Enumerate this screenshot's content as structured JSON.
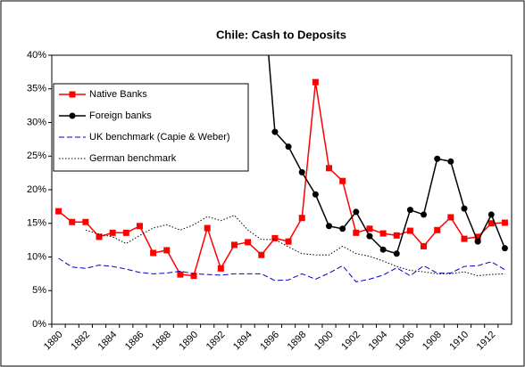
{
  "chart_data": {
    "type": "line",
    "title": "Chile: Cash to Deposits",
    "categories": [
      "1880",
      null,
      "1882",
      null,
      "1884",
      null,
      "1886",
      null,
      "1888",
      null,
      "1890",
      null,
      "1892",
      null,
      "1894",
      null,
      "1896",
      null,
      "1898",
      null,
      "1900",
      null,
      "1902",
      null,
      "1904",
      null,
      "1906",
      null,
      "1908",
      null,
      "1910",
      null,
      "1912",
      null
    ],
    "series": [
      {
        "name": "Native Banks",
        "color": "#ff0000",
        "line_style": "solid",
        "marker": "square",
        "values": [
          16.8,
          15.2,
          15.2,
          13.0,
          13.6,
          13.6,
          14.6,
          10.6,
          11.0,
          7.4,
          7.2,
          14.3,
          8.3,
          11.8,
          12.2,
          10.3,
          12.8,
          12.3,
          15.8,
          36.0,
          23.2,
          21.3,
          13.6,
          14.2,
          13.5,
          13.2,
          13.9,
          11.6,
          14.0,
          15.9,
          12.7,
          13.0,
          15.0,
          15.1
        ]
      },
      {
        "name": "Foreign banks",
        "color": "#000000",
        "line_style": "solid",
        "marker": "circle",
        "values": [
          null,
          null,
          null,
          null,
          null,
          null,
          null,
          null,
          null,
          null,
          null,
          null,
          null,
          null,
          null,
          53,
          28.6,
          26.4,
          22.6,
          19.3,
          14.6,
          14.2,
          16.7,
          13.1,
          11.1,
          10.5,
          17.0,
          16.3,
          24.6,
          24.2,
          17.2,
          12.3,
          16.3,
          11.3
        ]
      },
      {
        "name": "UK benchmark (Capie & Weber)",
        "color": "#0000cc",
        "line_style": "dashed",
        "marker": "none",
        "values": [
          9.8,
          8.5,
          8.3,
          8.8,
          8.6,
          8.2,
          7.7,
          7.5,
          7.6,
          7.9,
          7.5,
          7.4,
          7.3,
          7.5,
          7.5,
          7.5,
          6.5,
          6.6,
          7.5,
          6.7,
          7.6,
          8.7,
          6.3,
          6.7,
          7.3,
          8.4,
          7.2,
          8.7,
          7.6,
          7.6,
          8.6,
          8.7,
          9.3,
          8.1
        ]
      },
      {
        "name": "German benchmark",
        "color": "#000000",
        "line_style": "dotted",
        "marker": "none",
        "values": [
          null,
          null,
          14.0,
          13.4,
          13.0,
          12.0,
          13.2,
          14.3,
          14.8,
          14.0,
          14.8,
          16.0,
          15.4,
          16.2,
          14.0,
          12.6,
          12.6,
          11.5,
          10.5,
          10.3,
          10.3,
          11.6,
          10.5,
          10.1,
          9.4,
          8.6,
          8.0,
          7.8,
          7.5,
          7.5,
          7.8,
          7.2,
          7.4,
          7.5
        ]
      }
    ],
    "ylim": [
      0,
      40
    ],
    "yticks": [
      {
        "value": 0,
        "label": "0%"
      },
      {
        "value": 5,
        "label": "5%"
      },
      {
        "value": 10,
        "label": "10%"
      },
      {
        "value": 15,
        "label": "15%"
      },
      {
        "value": 20,
        "label": "20%"
      },
      {
        "value": 25,
        "label": "25%"
      },
      {
        "value": 30,
        "label": "30%"
      },
      {
        "value": 35,
        "label": "35%"
      },
      {
        "value": 40,
        "label": "40%"
      }
    ],
    "grid": false,
    "legend": "upper left"
  }
}
